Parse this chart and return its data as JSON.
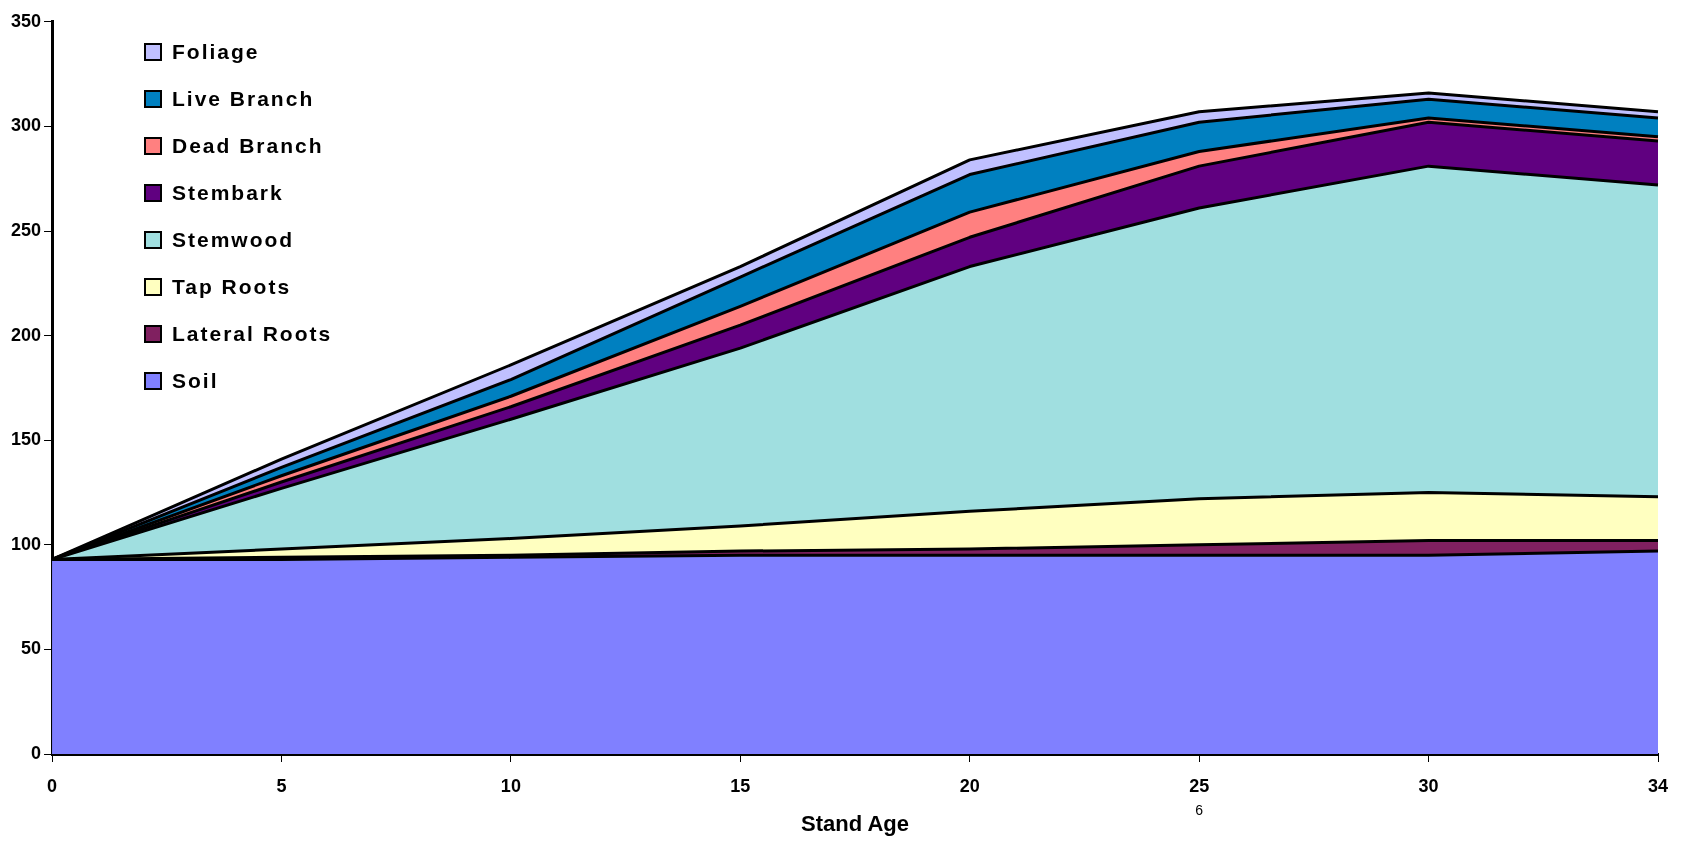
{
  "chart_data": {
    "type": "area",
    "xlabel": "Stand Age",
    "categories": [
      "0",
      "5",
      "10",
      "15",
      "20",
      "25",
      "30",
      "34"
    ],
    "stacked": true,
    "ylim": [
      0,
      350
    ],
    "yticks": [
      0,
      50,
      100,
      150,
      200,
      250,
      300,
      350
    ],
    "grid": false,
    "legend": "top left",
    "annotations": [
      "6"
    ],
    "series": [
      {
        "name": "Soil",
        "color": "#8080ff",
        "values": [
          93,
          93,
          94,
          95,
          95,
          95,
          95,
          97
        ]
      },
      {
        "name": "Lateral Roots",
        "color": "#802060",
        "values": [
          0,
          1,
          1,
          2,
          3,
          5,
          7,
          5
        ]
      },
      {
        "name": "Tap Roots",
        "color": "#ffffc0",
        "values": [
          0,
          4,
          8,
          12,
          18,
          22,
          23,
          21
        ]
      },
      {
        "name": "Stemwood",
        "color": "#a0dfe0",
        "values": [
          0,
          29,
          57,
          85,
          117,
          139,
          156,
          149
        ]
      },
      {
        "name": "Stembark",
        "color": "#600080",
        "values": [
          0,
          3,
          6,
          11,
          14,
          20,
          21,
          21
        ]
      },
      {
        "name": "Dead Branch",
        "color": "#ff8080",
        "values": [
          0,
          3,
          5,
          9,
          12,
          7,
          2,
          2
        ]
      },
      {
        "name": "Live Branch",
        "color": "#0080c0",
        "values": [
          0,
          4,
          8,
          14,
          18,
          14,
          9,
          9
        ]
      },
      {
        "name": "Foliage",
        "color": "#c0c0ff",
        "values": [
          0,
          4,
          7,
          5,
          7,
          5,
          3,
          3
        ]
      }
    ]
  }
}
